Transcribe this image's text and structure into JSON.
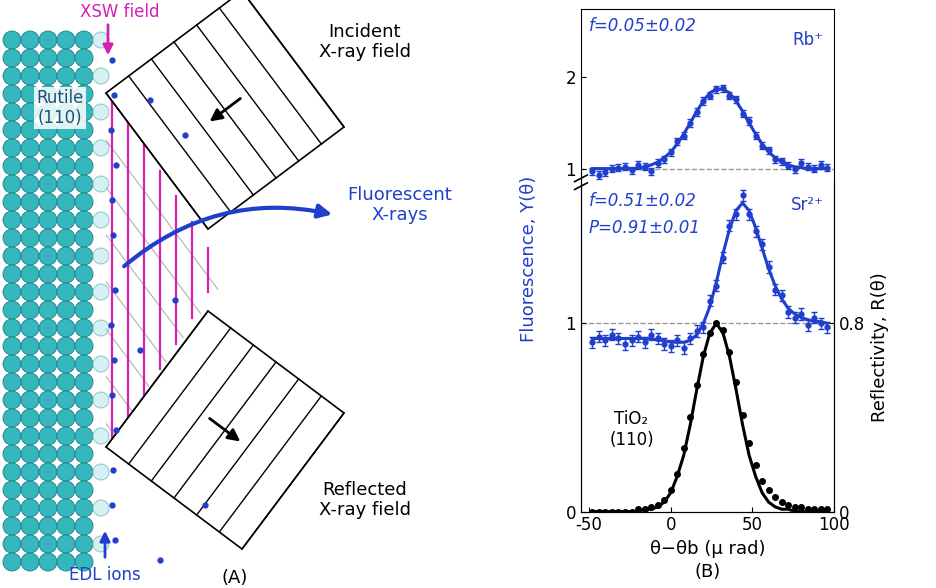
{
  "diagram": {
    "panel_label": "(A)",
    "surface": {
      "text": "Rutile\n(110)",
      "color": "#1f4e79"
    },
    "xsw": {
      "text": "XSW field",
      "color": "#d81fb4"
    },
    "incident": {
      "text": "Incident\nX-ray field",
      "color": "#000000"
    },
    "reflected": {
      "text": "Reflected\nX-ray field",
      "color": "#000000"
    },
    "fluorescent": {
      "text": "Fluorescent\nX-rays",
      "color": "#1f3fcc"
    },
    "ions": {
      "text": "EDL ions",
      "color": "#1f3fcc"
    }
  },
  "chart_data": [
    {
      "type": "scatter",
      "xlim": [
        -55,
        100
      ],
      "xticks": [
        -50,
        0,
        50,
        100
      ],
      "ylim": [
        0.85,
        2.75
      ],
      "yticks": [
        1,
        2
      ],
      "baseline": 1,
      "x": [
        -48,
        -44,
        -40,
        -36,
        -32,
        -28,
        -24,
        -20,
        -16,
        -12,
        -8,
        -4,
        0,
        4,
        8,
        12,
        16,
        20,
        24,
        28,
        32,
        36,
        40,
        44,
        48,
        52,
        56,
        60,
        64,
        68,
        72,
        76,
        80,
        84,
        88,
        92,
        96
      ],
      "series": [
        {
          "name": "Rb⁺",
          "color": "#1f3fcc",
          "marker": "o",
          "line_style": "solid",
          "annotations": [
            "f=0.05±0.02"
          ],
          "values": [
            0.97,
            0.93,
            0.96,
            1.0,
            1.01,
            1.02,
            0.98,
            1.04,
            1.02,
            0.97,
            1.06,
            1.1,
            1.18,
            1.3,
            1.36,
            1.5,
            1.62,
            1.74,
            1.8,
            1.87,
            1.88,
            1.8,
            1.76,
            1.6,
            1.52,
            1.36,
            1.25,
            1.2,
            1.1,
            1.08,
            1.03,
            0.99,
            1.06,
            1.02,
            1.0,
            1.04,
            1.01
          ],
          "errors": [
            0.04,
            0.04,
            0.04,
            0.04,
            0.04,
            0.04,
            0.04,
            0.04,
            0.04,
            0.04,
            0.04,
            0.04,
            0.04,
            0.04,
            0.04,
            0.04,
            0.04,
            0.04,
            0.04,
            0.04,
            0.04,
            0.04,
            0.04,
            0.04,
            0.04,
            0.04,
            0.04,
            0.04,
            0.04,
            0.04,
            0.04,
            0.04,
            0.04,
            0.04,
            0.04,
            0.04,
            0.04
          ],
          "fit": [
            1.0,
            1.0,
            1.0,
            1.0,
            1.0,
            1.0,
            1.0,
            1.0,
            1.02,
            1.04,
            1.07,
            1.12,
            1.18,
            1.27,
            1.38,
            1.5,
            1.63,
            1.74,
            1.83,
            1.87,
            1.87,
            1.83,
            1.74,
            1.63,
            1.5,
            1.38,
            1.27,
            1.18,
            1.12,
            1.07,
            1.04,
            1.02,
            1.01,
            1.0,
            1.0,
            1.0,
            1.0
          ]
        }
      ]
    },
    {
      "type": "scatter",
      "panel_label": "(B)",
      "x_label": "θ−θb (μ rad)",
      "y_label": "Fluorescence, Y(θ)",
      "y_label_color": "#1f3fcc",
      "y2_label": "Reflectivity, R(θ)",
      "xlim": [
        -55,
        100
      ],
      "xticks": [
        -50,
        0,
        50,
        100
      ],
      "ylim": [
        0,
        1.75
      ],
      "yticks": [
        0,
        1
      ],
      "y2lim": [
        0,
        1.4
      ],
      "y2ticks": [
        0,
        0.8
      ],
      "baseline": 1,
      "x": [
        -48,
        -44,
        -40,
        -36,
        -32,
        -28,
        -24,
        -20,
        -16,
        -12,
        -8,
        -4,
        0,
        4,
        8,
        12,
        16,
        20,
        24,
        28,
        32,
        36,
        40,
        44,
        48,
        52,
        56,
        60,
        64,
        68,
        72,
        76,
        80,
        84,
        88,
        92,
        96
      ],
      "series": [
        {
          "name": "Sr²⁺",
          "color": "#1f3fcc",
          "marker": "o",
          "line_style": "solid",
          "annotations": [
            "f=0.51±0.02",
            "P=0.91±0.01"
          ],
          "values": [
            0.9,
            0.93,
            0.91,
            0.94,
            0.92,
            0.89,
            0.91,
            0.93,
            0.9,
            0.94,
            0.92,
            0.89,
            0.88,
            0.91,
            0.87,
            0.92,
            0.96,
            0.98,
            1.12,
            1.2,
            1.35,
            1.52,
            1.58,
            1.68,
            1.58,
            1.49,
            1.42,
            1.3,
            1.18,
            1.15,
            1.06,
            1.03,
            1.05,
            0.99,
            1.03,
            1.0,
            0.98
          ],
          "errors": [
            0.03,
            0.03,
            0.03,
            0.03,
            0.03,
            0.03,
            0.03,
            0.03,
            0.03,
            0.03,
            0.03,
            0.03,
            0.03,
            0.03,
            0.03,
            0.03,
            0.03,
            0.03,
            0.03,
            0.03,
            0.03,
            0.03,
            0.03,
            0.03,
            0.03,
            0.03,
            0.03,
            0.03,
            0.03,
            0.03,
            0.03,
            0.03,
            0.03,
            0.03,
            0.03,
            0.03,
            0.03
          ],
          "fit": [
            0.92,
            0.92,
            0.92,
            0.92,
            0.92,
            0.92,
            0.92,
            0.92,
            0.92,
            0.92,
            0.91,
            0.91,
            0.9,
            0.9,
            0.9,
            0.91,
            0.94,
            1.0,
            1.09,
            1.22,
            1.37,
            1.5,
            1.6,
            1.64,
            1.6,
            1.51,
            1.4,
            1.29,
            1.2,
            1.13,
            1.08,
            1.05,
            1.03,
            1.02,
            1.01,
            1.01,
            1.0
          ]
        },
        {
          "name": "TiO₂\n(110)",
          "color": "#000000",
          "marker": "o",
          "line_style": "solid",
          "axis": "y2",
          "values": [
            0,
            0,
            0,
            0,
            0,
            0,
            0,
            0.01,
            0.01,
            0.02,
            0.03,
            0.05,
            0.09,
            0.16,
            0.27,
            0.4,
            0.54,
            0.67,
            0.76,
            0.8,
            0.77,
            0.68,
            0.55,
            0.41,
            0.29,
            0.2,
            0.13,
            0.09,
            0.06,
            0.04,
            0.03,
            0.02,
            0.02,
            0.01,
            0.01,
            0.01,
            0.01
          ],
          "fit": [
            0,
            0,
            0,
            0,
            0,
            0,
            0,
            0,
            0.01,
            0.01,
            0.02,
            0.04,
            0.08,
            0.15,
            0.24,
            0.37,
            0.52,
            0.66,
            0.76,
            0.8,
            0.76,
            0.66,
            0.52,
            0.37,
            0.24,
            0.15,
            0.08,
            0.04,
            0.02,
            0.01,
            0.01,
            0,
            0,
            0,
            0,
            0,
            0
          ]
        }
      ]
    }
  ]
}
